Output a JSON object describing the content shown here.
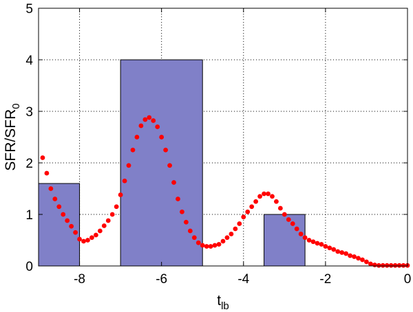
{
  "chart_data": {
    "type": "bar",
    "xlabel": {
      "main": "t",
      "sub": "lb"
    },
    "ylabel": {
      "main": "SFR/SFR",
      "sub": "0"
    },
    "xlim": [
      -9,
      0
    ],
    "ylim": [
      0,
      5
    ],
    "xticks": [
      -8,
      -6,
      -4,
      -2,
      0
    ],
    "yticks": [
      0,
      1,
      2,
      3,
      4,
      5
    ],
    "grid": true,
    "colors": {
      "bar_fill": "#8080c8",
      "bar_edge": "#000000",
      "scatter": "#ff0000"
    },
    "series": [
      {
        "type": "bar",
        "bins": [
          {
            "x0": -9.0,
            "x1": -8.0,
            "value": 1.6
          },
          {
            "x0": -7.0,
            "x1": -5.0,
            "value": 4.0
          },
          {
            "x0": -3.5,
            "x1": -2.5,
            "value": 1.0
          }
        ]
      },
      {
        "type": "scatter",
        "points": [
          [
            -8.9,
            2.1
          ],
          [
            -8.8,
            1.8
          ],
          [
            -8.7,
            1.5
          ],
          [
            -8.6,
            1.3
          ],
          [
            -8.5,
            1.15
          ],
          [
            -8.4,
            1.0
          ],
          [
            -8.3,
            0.88
          ],
          [
            -8.2,
            0.77
          ],
          [
            -8.1,
            0.65
          ],
          [
            -8.0,
            0.52
          ],
          [
            -7.9,
            0.48
          ],
          [
            -7.8,
            0.5
          ],
          [
            -7.7,
            0.55
          ],
          [
            -7.6,
            0.6
          ],
          [
            -7.5,
            0.68
          ],
          [
            -7.4,
            0.78
          ],
          [
            -7.3,
            0.88
          ],
          [
            -7.2,
            1.0
          ],
          [
            -7.1,
            1.15
          ],
          [
            -7.0,
            1.38
          ],
          [
            -6.9,
            1.65
          ],
          [
            -6.8,
            1.95
          ],
          [
            -6.7,
            2.25
          ],
          [
            -6.6,
            2.5
          ],
          [
            -6.5,
            2.72
          ],
          [
            -6.4,
            2.84
          ],
          [
            -6.3,
            2.88
          ],
          [
            -6.2,
            2.82
          ],
          [
            -6.1,
            2.7
          ],
          [
            -6.0,
            2.5
          ],
          [
            -5.9,
            2.25
          ],
          [
            -5.8,
            1.95
          ],
          [
            -5.7,
            1.62
          ],
          [
            -5.6,
            1.3
          ],
          [
            -5.5,
            1.05
          ],
          [
            -5.4,
            0.85
          ],
          [
            -5.3,
            0.68
          ],
          [
            -5.2,
            0.55
          ],
          [
            -5.1,
            0.45
          ],
          [
            -5.0,
            0.4
          ],
          [
            -4.9,
            0.38
          ],
          [
            -4.8,
            0.38
          ],
          [
            -4.7,
            0.4
          ],
          [
            -4.6,
            0.42
          ],
          [
            -4.5,
            0.48
          ],
          [
            -4.4,
            0.55
          ],
          [
            -4.3,
            0.62
          ],
          [
            -4.2,
            0.72
          ],
          [
            -4.1,
            0.82
          ],
          [
            -4.0,
            0.95
          ],
          [
            -3.9,
            1.05
          ],
          [
            -3.8,
            1.15
          ],
          [
            -3.7,
            1.25
          ],
          [
            -3.6,
            1.35
          ],
          [
            -3.5,
            1.4
          ],
          [
            -3.4,
            1.4
          ],
          [
            -3.3,
            1.35
          ],
          [
            -3.2,
            1.25
          ],
          [
            -3.1,
            1.12
          ],
          [
            -3.0,
            1.0
          ],
          [
            -2.9,
            0.9
          ],
          [
            -2.8,
            0.82
          ],
          [
            -2.7,
            0.72
          ],
          [
            -2.6,
            0.62
          ],
          [
            -2.5,
            0.55
          ],
          [
            -2.4,
            0.5
          ],
          [
            -2.3,
            0.47
          ],
          [
            -2.2,
            0.44
          ],
          [
            -2.1,
            0.42
          ],
          [
            -2.0,
            0.38
          ],
          [
            -1.9,
            0.35
          ],
          [
            -1.8,
            0.32
          ],
          [
            -1.7,
            0.28
          ],
          [
            -1.6,
            0.26
          ],
          [
            -1.5,
            0.24
          ],
          [
            -1.4,
            0.2
          ],
          [
            -1.3,
            0.18
          ],
          [
            -1.2,
            0.15
          ],
          [
            -1.1,
            0.12
          ],
          [
            -1.0,
            0.08
          ],
          [
            -0.9,
            0.04
          ],
          [
            -0.8,
            0.02
          ],
          [
            -0.7,
            0.01
          ],
          [
            -0.6,
            0.01
          ],
          [
            -0.5,
            0.01
          ],
          [
            -0.4,
            0.01
          ],
          [
            -0.3,
            0.01
          ],
          [
            -0.2,
            0.01
          ],
          [
            -0.1,
            0.01
          ],
          [
            0.0,
            0.01
          ]
        ]
      }
    ]
  }
}
